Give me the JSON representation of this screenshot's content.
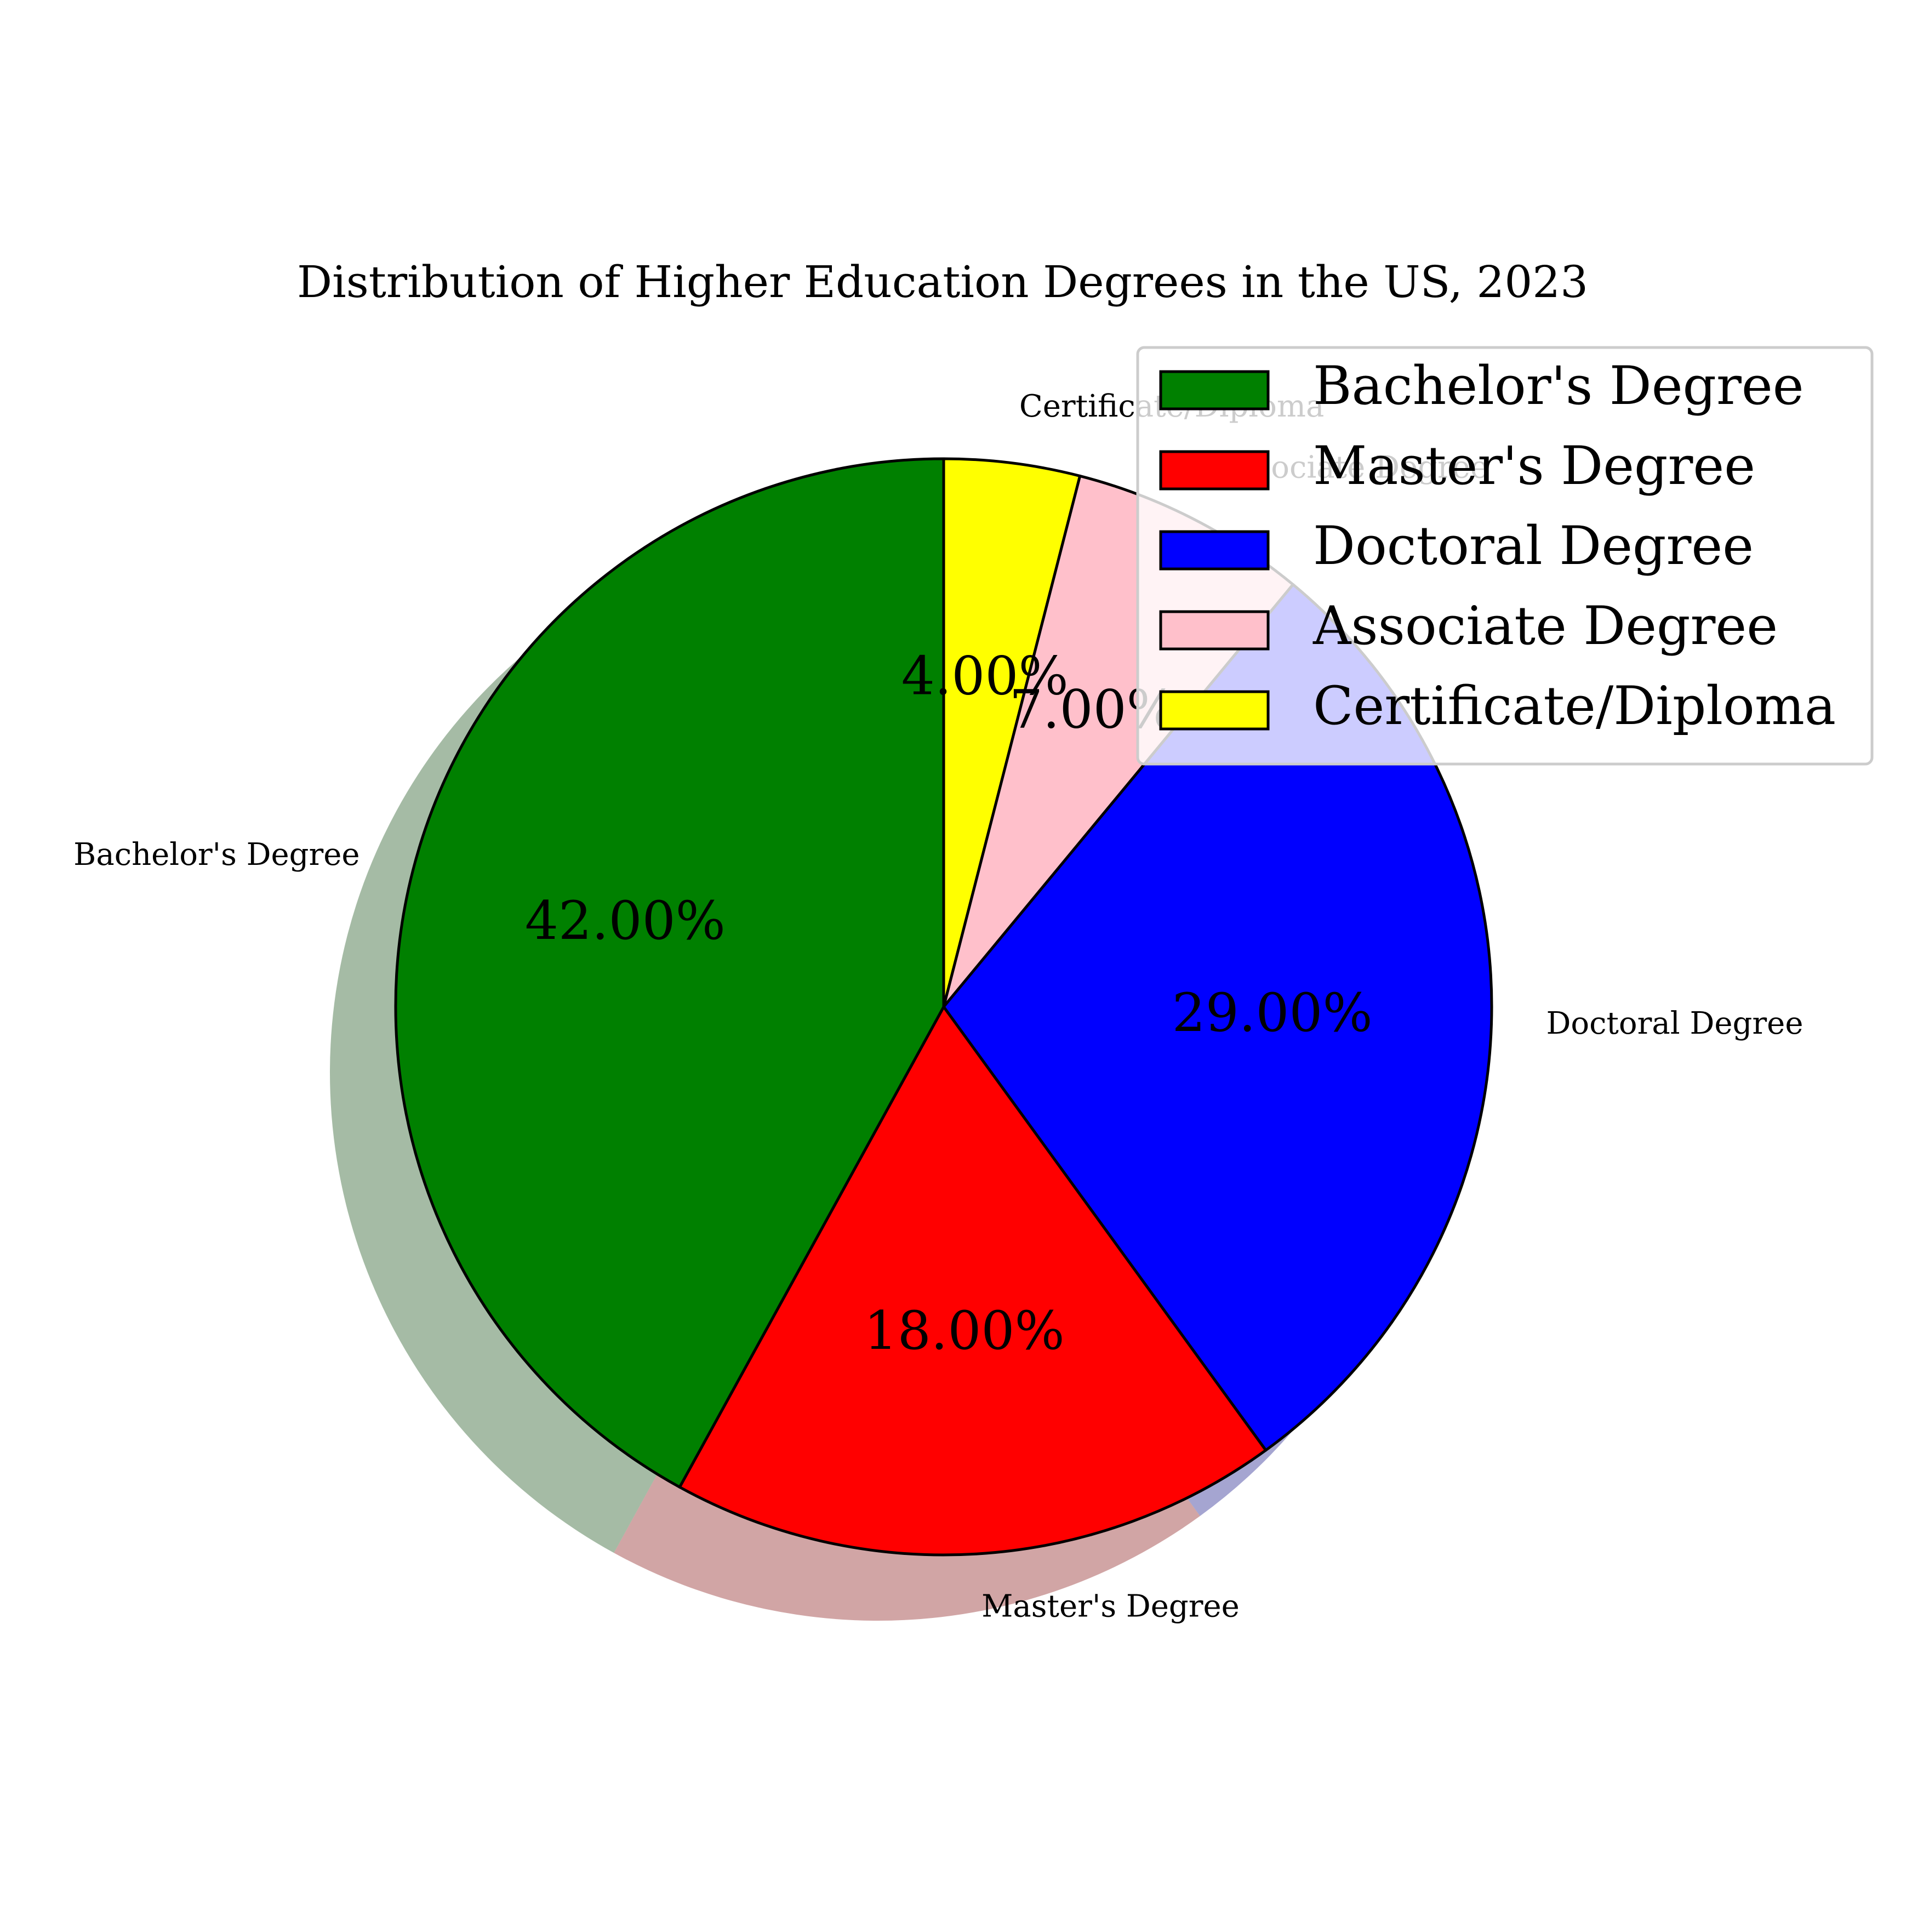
{
  "chart_data": {
    "type": "pie",
    "title": "Distribution of Higher Education Degrees in the US, 2023",
    "slices": [
      {
        "label": "Certificate/Diploma",
        "value": 4.0,
        "pct_label": "4.00%",
        "color": "#ffff00"
      },
      {
        "label": "Associate Degree",
        "value": 7.0,
        "pct_label": "7.00%",
        "color": "#ffc0cb"
      },
      {
        "label": "Doctoral Degree",
        "value": 29.0,
        "pct_label": "29.00%",
        "color": "#0000ff"
      },
      {
        "label": "Master's Degree",
        "value": 18.0,
        "pct_label": "18.00%",
        "color": "#ff0000"
      },
      {
        "label": "Bachelor's Degree",
        "value": 42.0,
        "pct_label": "42.00%",
        "color": "#008000"
      }
    ],
    "legend": {
      "placement": "top-right",
      "entries": [
        "Bachelor's Degree",
        "Master's Degree",
        "Doctoral Degree",
        "Associate Degree",
        "Certificate/Diploma"
      ]
    },
    "start_angle": "12 o'clock",
    "direction": "clockwise",
    "shadow": true
  }
}
